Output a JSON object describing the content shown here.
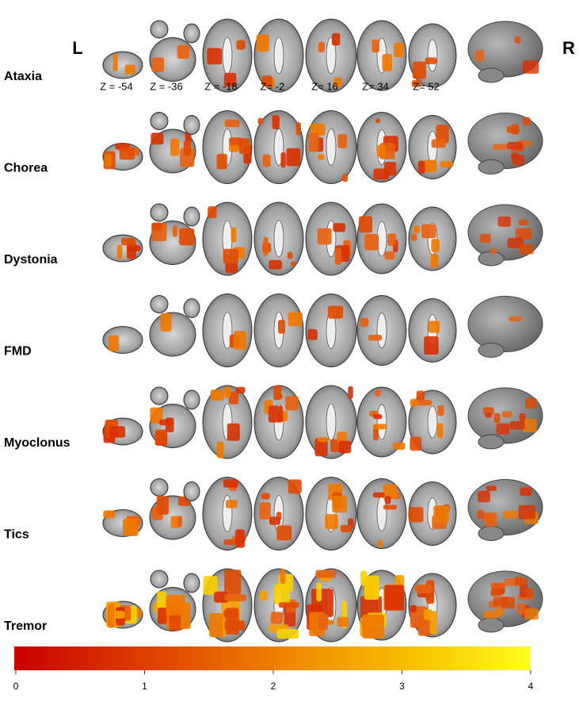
{
  "side_labels": {
    "left": "L",
    "right": "R"
  },
  "z_labels": [
    "Z = -54",
    "Z = -36",
    "Z = -18",
    "Z= -2",
    "Z= 16",
    "Z= 34",
    "Z= 52"
  ],
  "rows": [
    "Ataxia",
    "Chorea",
    "Dystonia",
    "FMD",
    "Myoclonus",
    "Tics",
    "Tremor"
  ],
  "colorbar": {
    "lim": [
      0,
      4
    ],
    "ticks": [
      0,
      1,
      2,
      3,
      4
    ]
  }
}
